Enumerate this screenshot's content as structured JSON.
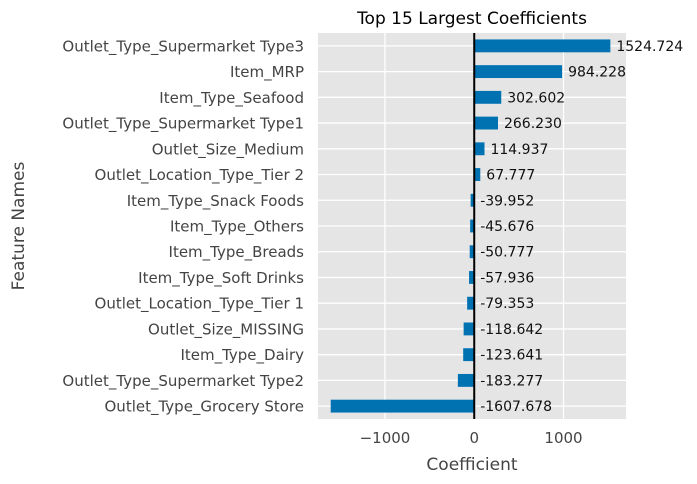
{
  "chart_data": {
    "type": "bar",
    "orientation": "horizontal",
    "title": "Top 15 Largest Coefficients",
    "xlabel": "Coefficient",
    "ylabel": "Feature Names",
    "xlim": [
      -1750,
      1700
    ],
    "xticks": [
      -1000,
      0,
      1000
    ],
    "xtick_labels": [
      "−1000",
      "0",
      "1000"
    ],
    "grid": true,
    "bar_color": "#0072b2",
    "categories": [
      "Outlet_Type_Supermarket Type3",
      "Item_MRP",
      "Item_Type_Seafood",
      "Outlet_Type_Supermarket Type1",
      "Outlet_Size_Medium",
      "Outlet_Location_Type_Tier 2",
      "Item_Type_Snack Foods",
      "Item_Type_Others",
      "Item_Type_Breads",
      "Item_Type_Soft Drinks",
      "Outlet_Location_Type_Tier 1",
      "Outlet_Size_MISSING",
      "Item_Type_Dairy",
      "Outlet_Type_Supermarket Type2",
      "Outlet_Type_Grocery Store"
    ],
    "values": [
      1524.724,
      984.228,
      302.602,
      266.23,
      114.937,
      67.777,
      -39.952,
      -45.676,
      -50.777,
      -57.936,
      -79.353,
      -118.642,
      -123.641,
      -183.277,
      -1607.678
    ],
    "value_labels": [
      "1524.724",
      "984.228",
      "302.602",
      "266.230",
      "114.937",
      "67.777",
      "-39.952",
      "-45.676",
      "-50.777",
      "-57.936",
      "-79.353",
      "-118.642",
      "-123.641",
      "-183.277",
      "-1607.678"
    ]
  }
}
